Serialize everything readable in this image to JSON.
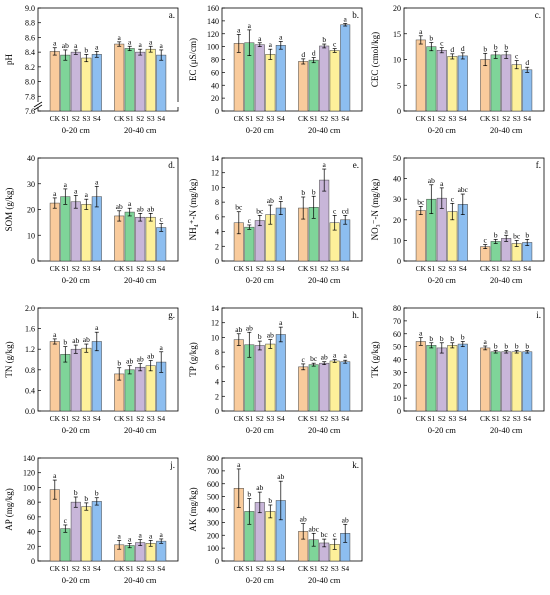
{
  "colors": {
    "CK": "#F9CB9C",
    "S1": "#7FD499",
    "S2": "#C8B6D9",
    "S3": "#FDF09A",
    "S4": "#8DBEF0"
  },
  "treatments": [
    "CK",
    "S1",
    "S2",
    "S3",
    "S4"
  ],
  "depths": [
    "0-20 cm",
    "20-40 cm"
  ],
  "chart_data": [
    {
      "type": "bar",
      "panel": "a.",
      "ylabel": "pH",
      "ylim": [
        7.6,
        9.0
      ],
      "yticks": [
        7.6,
        7.8,
        8.0,
        8.2,
        8.4,
        8.6,
        8.8,
        9.0
      ],
      "axis_break": true,
      "categories": [
        "0-20 cm",
        "20-40 cm"
      ],
      "series": [
        {
          "name": "CK",
          "values": [
            8.41,
            8.51
          ],
          "errors": [
            0.05,
            0.03
          ],
          "letters": [
            "a",
            "a"
          ]
        },
        {
          "name": "S1",
          "values": [
            8.36,
            8.45
          ],
          "errors": [
            0.07,
            0.03
          ],
          "letters": [
            "ab",
            "a"
          ]
        },
        {
          "name": "S2",
          "values": [
            8.4,
            8.4
          ],
          "errors": [
            0.03,
            0.04
          ],
          "letters": [
            "a",
            "a"
          ]
        },
        {
          "name": "S3",
          "values": [
            8.32,
            8.44
          ],
          "errors": [
            0.05,
            0.04
          ],
          "letters": [
            "b",
            "a"
          ]
        },
        {
          "name": "S4",
          "values": [
            8.37,
            8.36
          ],
          "errors": [
            0.04,
            0.07
          ],
          "letters": [
            "a",
            "a"
          ]
        }
      ]
    },
    {
      "type": "bar",
      "panel": "b.",
      "ylabel": "EC (μS/cm)",
      "ylim": [
        0,
        160
      ],
      "yticks": [
        0,
        20,
        40,
        60,
        80,
        100,
        120,
        140,
        160
      ],
      "categories": [
        "0-20 cm",
        "20-40 cm"
      ],
      "series": [
        {
          "name": "CK",
          "values": [
            105,
            77
          ],
          "errors": [
            14,
            4
          ],
          "letters": [
            "a",
            "d"
          ]
        },
        {
          "name": "S1",
          "values": [
            106,
            79
          ],
          "errors": [
            20,
            4
          ],
          "letters": [
            "a",
            "d"
          ]
        },
        {
          "name": "S2",
          "values": [
            103,
            101
          ],
          "errors": [
            3,
            3
          ],
          "letters": [
            "a",
            "b"
          ]
        },
        {
          "name": "S3",
          "values": [
            88,
            94
          ],
          "errors": [
            8,
            3
          ],
          "letters": [
            "a",
            "c"
          ]
        },
        {
          "name": "S4",
          "values": [
            102,
            134
          ],
          "errors": [
            6,
            2
          ],
          "letters": [
            "a",
            "a"
          ]
        }
      ]
    },
    {
      "type": "bar",
      "panel": "c.",
      "ylabel": "CEC (cmol/kg)",
      "ylim": [
        0,
        20
      ],
      "yticks": [
        0,
        5,
        10,
        15,
        20
      ],
      "categories": [
        "0-20 cm",
        "20-40 cm"
      ],
      "series": [
        {
          "name": "CK",
          "values": [
            13.8,
            10.0
          ],
          "errors": [
            0.8,
            1.2
          ],
          "letters": [
            "a",
            "b"
          ]
        },
        {
          "name": "S1",
          "values": [
            12.5,
            10.9
          ],
          "errors": [
            0.8,
            0.7
          ],
          "letters": [
            "b",
            "b"
          ]
        },
        {
          "name": "S2",
          "values": [
            11.8,
            10.9
          ],
          "errors": [
            0.5,
            0.7
          ],
          "letters": [
            "c",
            "b"
          ]
        },
        {
          "name": "S3",
          "values": [
            10.6,
            9.0
          ],
          "errors": [
            0.5,
            0.8
          ],
          "letters": [
            "d",
            "c"
          ]
        },
        {
          "name": "S4",
          "values": [
            10.7,
            8.0
          ],
          "errors": [
            0.6,
            0.5
          ],
          "letters": [
            "d",
            "d"
          ]
        }
      ]
    },
    {
      "type": "bar",
      "panel": "d.",
      "ylabel": "SOM (g/kg)",
      "ylim": [
        0,
        40
      ],
      "yticks": [
        0,
        10,
        20,
        30,
        40
      ],
      "categories": [
        "0-20 cm",
        "20-40 cm"
      ],
      "series": [
        {
          "name": "CK",
          "values": [
            22.5,
            17.5
          ],
          "errors": [
            2.0,
            2.0
          ],
          "letters": [
            "a",
            "ab"
          ]
        },
        {
          "name": "S1",
          "values": [
            25.0,
            19.0
          ],
          "errors": [
            3.0,
            1.5
          ],
          "letters": [
            "a",
            "a"
          ]
        },
        {
          "name": "S2",
          "values": [
            23.0,
            17.0
          ],
          "errors": [
            2.5,
            1.5
          ],
          "letters": [
            "a",
            "ab"
          ]
        },
        {
          "name": "S3",
          "values": [
            22.0,
            17.0
          ],
          "errors": [
            2.0,
            1.5
          ],
          "letters": [
            "a",
            "ab"
          ]
        },
        {
          "name": "S4",
          "values": [
            25.0,
            13.0
          ],
          "errors": [
            4.0,
            1.5
          ],
          "letters": [
            "a",
            "c"
          ]
        }
      ]
    },
    {
      "type": "bar",
      "panel": "e.",
      "ylabel": "NH₄⁺-N (mg/kg)",
      "ylim": [
        0,
        14
      ],
      "yticks": [
        0,
        2,
        4,
        6,
        8,
        10,
        12,
        14
      ],
      "categories": [
        "0-20 cm",
        "20-40 cm"
      ],
      "series": [
        {
          "name": "CK",
          "values": [
            5.2,
            7.2
          ],
          "errors": [
            1.5,
            1.5
          ],
          "letters": [
            "bc",
            "b"
          ]
        },
        {
          "name": "S1",
          "values": [
            4.6,
            7.3
          ],
          "errors": [
            0.3,
            1.5
          ],
          "letters": [
            "c",
            "b"
          ]
        },
        {
          "name": "S2",
          "values": [
            5.5,
            11.0
          ],
          "errors": [
            0.7,
            1.5
          ],
          "letters": [
            "bc",
            "a"
          ]
        },
        {
          "name": "S3",
          "values": [
            6.3,
            5.2
          ],
          "errors": [
            1.3,
            1.0
          ],
          "letters": [
            "ab",
            "c"
          ]
        },
        {
          "name": "S4",
          "values": [
            7.2,
            5.6
          ],
          "errors": [
            0.9,
            0.6
          ],
          "letters": [
            "a",
            "cd"
          ]
        }
      ]
    },
    {
      "type": "bar",
      "panel": "f.",
      "ylabel": "NO₃⁻-N (mg/kg)",
      "ylim": [
        0,
        50
      ],
      "yticks": [
        0,
        10,
        20,
        30,
        40,
        50
      ],
      "categories": [
        "0-20 cm",
        "20-40 cm"
      ],
      "series": [
        {
          "name": "CK",
          "values": [
            24.5,
            7.0
          ],
          "errors": [
            2.0,
            1.0
          ],
          "letters": [
            "bc",
            "c"
          ]
        },
        {
          "name": "S1",
          "values": [
            30.0,
            9.5
          ],
          "errors": [
            7.0,
            1.0
          ],
          "letters": [
            "ab",
            "b"
          ]
        },
        {
          "name": "S2",
          "values": [
            30.5,
            11.0
          ],
          "errors": [
            5.0,
            1.5
          ],
          "letters": [
            "a",
            "a"
          ]
        },
        {
          "name": "S3",
          "values": [
            24.0,
            8.5
          ],
          "errors": [
            4.0,
            1.5
          ],
          "letters": [
            "c",
            "bc"
          ]
        },
        {
          "name": "S4",
          "values": [
            27.5,
            9.0
          ],
          "errors": [
            5.0,
            1.5
          ],
          "letters": [
            "abc",
            "b"
          ]
        }
      ]
    },
    {
      "type": "bar",
      "panel": "g.",
      "ylabel": "TN (g/kg)",
      "ylim": [
        0,
        2.0
      ],
      "yticks": [
        0.0,
        0.4,
        0.8,
        1.2,
        1.6,
        2.0
      ],
      "categories": [
        "0-20 cm",
        "20-40 cm"
      ],
      "series": [
        {
          "name": "CK",
          "values": [
            1.35,
            0.72
          ],
          "errors": [
            0.05,
            0.12
          ],
          "letters": [
            "a",
            "b"
          ]
        },
        {
          "name": "S1",
          "values": [
            1.1,
            0.8
          ],
          "errors": [
            0.15,
            0.08
          ],
          "letters": [
            "b",
            "ab"
          ]
        },
        {
          "name": "S2",
          "values": [
            1.2,
            0.85
          ],
          "errors": [
            0.08,
            0.07
          ],
          "letters": [
            "ab",
            "ab"
          ]
        },
        {
          "name": "S3",
          "values": [
            1.22,
            0.88
          ],
          "errors": [
            0.08,
            0.1
          ],
          "letters": [
            "ab",
            "ab"
          ]
        },
        {
          "name": "S4",
          "values": [
            1.35,
            0.95
          ],
          "errors": [
            0.18,
            0.2
          ],
          "letters": [
            "a",
            "a"
          ]
        }
      ]
    },
    {
      "type": "bar",
      "panel": "h.",
      "ylabel": "TP (g/kg)",
      "ylim": [
        0,
        14
      ],
      "yticks": [
        0,
        2,
        4,
        6,
        8,
        10,
        12,
        14
      ],
      "categories": [
        "0-20 cm",
        "20-40 cm"
      ],
      "series": [
        {
          "name": "CK",
          "values": [
            9.7,
            6.0
          ],
          "errors": [
            0.8,
            0.4
          ],
          "letters": [
            "ab",
            "c"
          ]
        },
        {
          "name": "S1",
          "values": [
            9.0,
            6.3
          ],
          "errors": [
            1.7,
            0.2
          ],
          "letters": [
            "ab",
            "bc"
          ]
        },
        {
          "name": "S2",
          "values": [
            8.9,
            6.5
          ],
          "errors": [
            0.6,
            0.2
          ],
          "letters": [
            "b",
            "ab"
          ]
        },
        {
          "name": "S3",
          "values": [
            9.1,
            6.8
          ],
          "errors": [
            0.6,
            0.2
          ],
          "letters": [
            "ab",
            "a"
          ]
        },
        {
          "name": "S4",
          "values": [
            10.4,
            6.7
          ],
          "errors": [
            1.0,
            0.2
          ],
          "letters": [
            "a",
            "a"
          ]
        }
      ]
    },
    {
      "type": "bar",
      "panel": "i.",
      "ylabel": "TK (g/kg)",
      "ylim": [
        0,
        80
      ],
      "yticks": [
        0,
        10,
        20,
        30,
        40,
        50,
        60,
        70,
        80
      ],
      "categories": [
        "0-20 cm",
        "20-40 cm"
      ],
      "series": [
        {
          "name": "CK",
          "values": [
            54,
            49
          ],
          "errors": [
            3,
            1.5
          ],
          "letters": [
            "a",
            "a"
          ]
        },
        {
          "name": "S1",
          "values": [
            51,
            46
          ],
          "errors": [
            2,
            1
          ],
          "letters": [
            "b",
            "b"
          ]
        },
        {
          "name": "S2",
          "values": [
            49,
            46
          ],
          "errors": [
            4,
            1
          ],
          "letters": [
            "b",
            "b"
          ]
        },
        {
          "name": "S3",
          "values": [
            51,
            46
          ],
          "errors": [
            2,
            1
          ],
          "letters": [
            "b",
            "b"
          ]
        },
        {
          "name": "S4",
          "values": [
            52,
            46
          ],
          "errors": [
            2,
            1
          ],
          "letters": [
            "b",
            "b"
          ]
        }
      ]
    },
    {
      "type": "bar",
      "panel": "j.",
      "ylabel": "AP (mg/kg)",
      "ylim": [
        0,
        140
      ],
      "yticks": [
        0,
        20,
        40,
        60,
        80,
        100,
        120,
        140
      ],
      "categories": [
        "0-20 cm",
        "20-40 cm"
      ],
      "series": [
        {
          "name": "CK",
          "values": [
            97,
            22
          ],
          "errors": [
            13,
            6
          ],
          "letters": [
            "a",
            "a"
          ]
        },
        {
          "name": "S1",
          "values": [
            44,
            21
          ],
          "errors": [
            5,
            3
          ],
          "letters": [
            "c",
            "a"
          ]
        },
        {
          "name": "S2",
          "values": [
            80,
            25
          ],
          "errors": [
            7,
            4
          ],
          "letters": [
            "b",
            "a"
          ]
        },
        {
          "name": "S3",
          "values": [
            74,
            24
          ],
          "errors": [
            5,
            4
          ],
          "letters": [
            "b",
            "a"
          ]
        },
        {
          "name": "S4",
          "values": [
            81,
            27
          ],
          "errors": [
            5,
            3
          ],
          "letters": [
            "b",
            "a"
          ]
        }
      ]
    },
    {
      "type": "bar",
      "panel": "k.",
      "ylabel": "AK (mg/kg)",
      "ylim": [
        0,
        800
      ],
      "yticks": [
        0,
        100,
        200,
        300,
        400,
        500,
        600,
        700,
        800
      ],
      "categories": [
        "0-20 cm",
        "20-40 cm"
      ],
      "series": [
        {
          "name": "CK",
          "values": [
            565,
            230
          ],
          "errors": [
            150,
            60
          ],
          "letters": [
            "a",
            "ab"
          ]
        },
        {
          "name": "S1",
          "values": [
            385,
            165
          ],
          "errors": [
            100,
            50
          ],
          "letters": [
            "b",
            "abc"
          ]
        },
        {
          "name": "S2",
          "values": [
            455,
            140
          ],
          "errors": [
            80,
            30
          ],
          "letters": [
            "ab",
            "bc"
          ]
        },
        {
          "name": "S3",
          "values": [
            385,
            130
          ],
          "errors": [
            50,
            40
          ],
          "letters": [
            "b",
            "c"
          ]
        },
        {
          "name": "S4",
          "values": [
            470,
            215
          ],
          "errors": [
            150,
            70
          ],
          "letters": [
            "ab",
            "ab"
          ]
        }
      ]
    }
  ]
}
